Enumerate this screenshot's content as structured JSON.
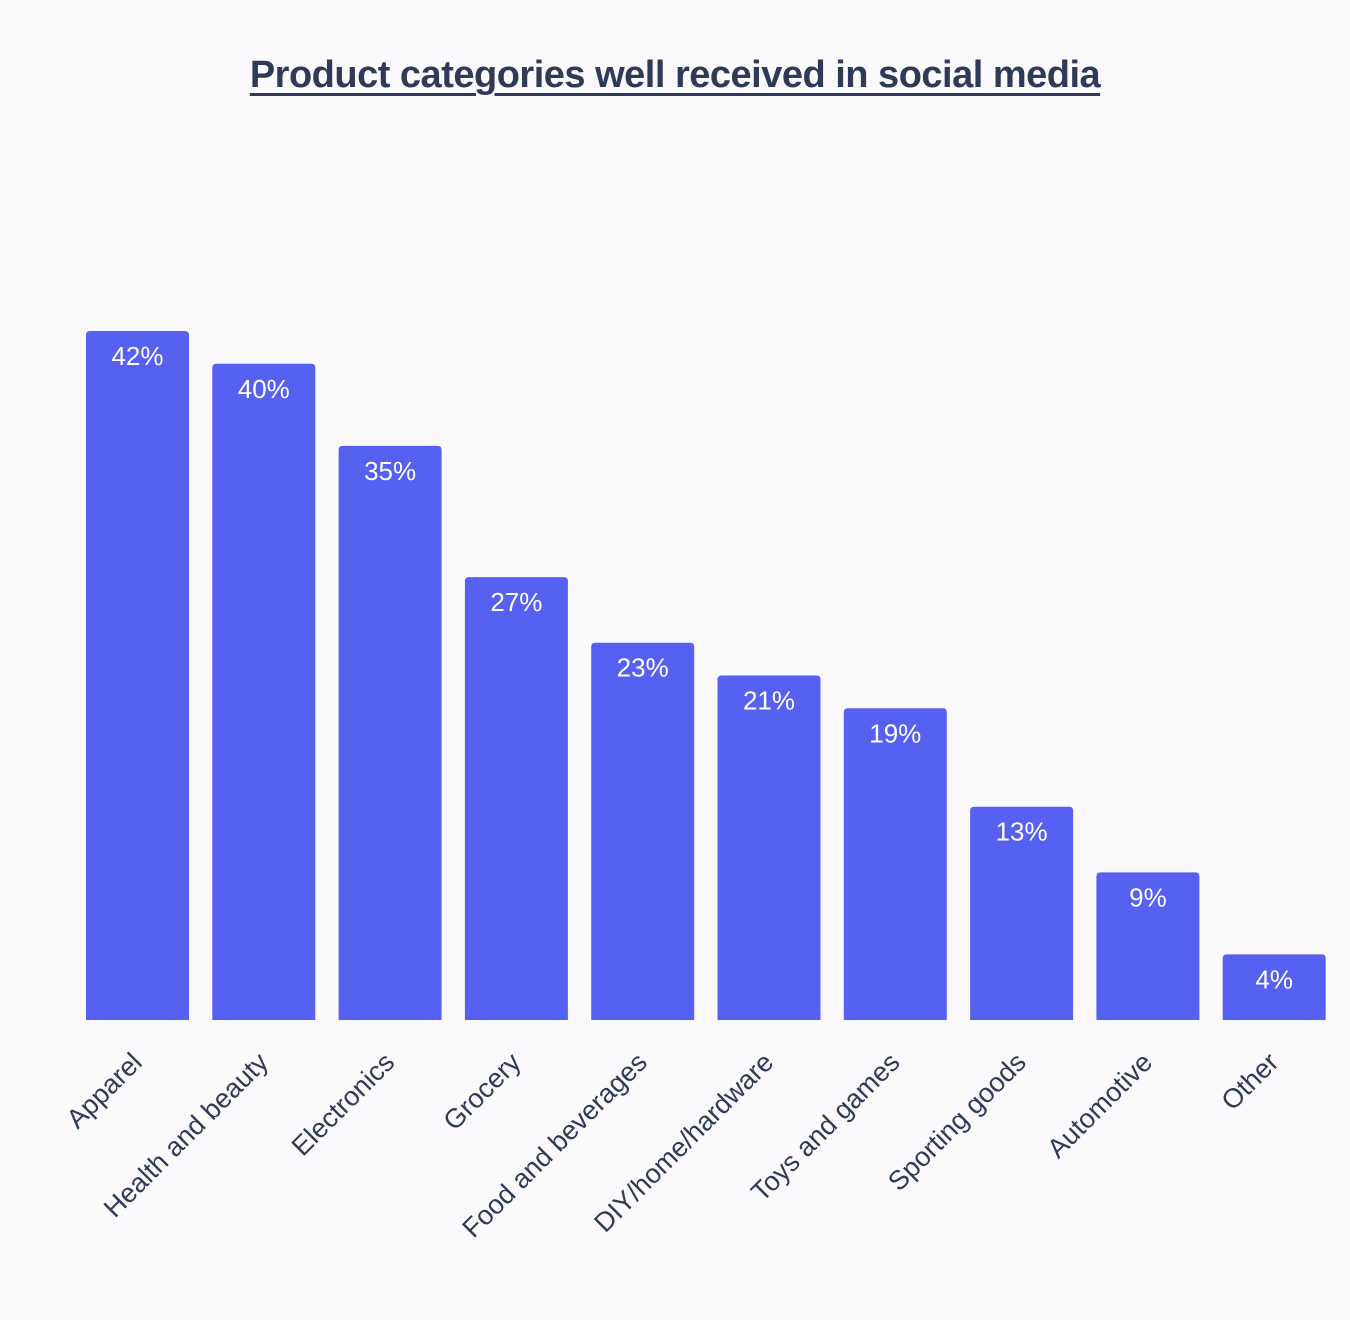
{
  "chart_data": {
    "type": "bar",
    "title": "Product categories well received in social media",
    "xlabel": "",
    "ylabel": "",
    "categories": [
      "Apparel",
      "Health and beauty",
      "Electronics",
      "Grocery",
      "Food and beverages",
      "DIY/home/hardware",
      "Toys and games",
      "Sporting goods",
      "Automotive",
      "Other"
    ],
    "values": [
      42,
      40,
      35,
      27,
      23,
      21,
      19,
      13,
      9,
      4
    ],
    "value_labels": [
      "42%",
      "40%",
      "35%",
      "27%",
      "23%",
      "21%",
      "19%",
      "13%",
      "9%",
      "4%"
    ],
    "ylim": [
      0,
      42
    ],
    "grid": false,
    "legend": "none",
    "bar_color": "#5661f2",
    "label_color": "#ffffff",
    "text_color": "#2f3a56",
    "background": "#fcf9fd"
  }
}
